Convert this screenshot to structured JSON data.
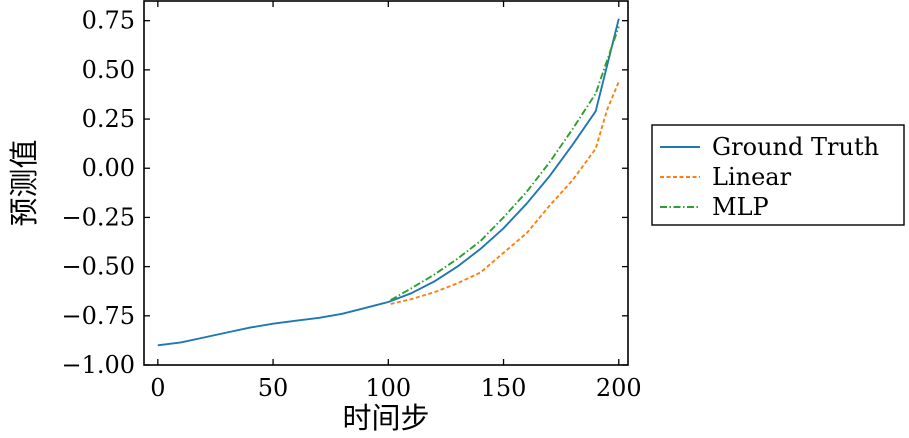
{
  "chart_data": {
    "type": "line",
    "title": "",
    "xlabel": "时间步",
    "ylabel": "预测值",
    "xlim": [
      -6,
      204
    ],
    "ylim": [
      -1.0,
      0.85
    ],
    "xticks": [
      0,
      50,
      100,
      150,
      200
    ],
    "xtick_labels": [
      "0",
      "50",
      "100",
      "150",
      "200"
    ],
    "yticks": [
      -1.0,
      -0.75,
      -0.5,
      -0.25,
      0.0,
      0.25,
      0.5,
      0.75
    ],
    "ytick_labels": [
      "−1.00",
      "−0.75",
      "−0.50",
      "−0.25",
      "0.00",
      "0.25",
      "0.50",
      "0.75"
    ],
    "grid": false,
    "legend_position": "outside-right",
    "series": [
      {
        "name": "Ground Truth",
        "color": "#1f77b4",
        "style": "solid",
        "x": [
          0,
          10,
          20,
          30,
          40,
          50,
          60,
          70,
          80,
          90,
          100,
          110,
          120,
          130,
          140,
          150,
          160,
          170,
          180,
          190,
          200
        ],
        "y": [
          -0.9,
          -0.885,
          -0.86,
          -0.835,
          -0.81,
          -0.79,
          -0.775,
          -0.76,
          -0.74,
          -0.71,
          -0.68,
          -0.635,
          -0.575,
          -0.5,
          -0.41,
          -0.305,
          -0.18,
          -0.04,
          0.12,
          0.29,
          0.76
        ]
      },
      {
        "name": "Linear",
        "color": "#ff7f0e",
        "style": "dashed",
        "x": [
          101,
          110,
          120,
          130,
          140,
          150,
          160,
          170,
          180,
          190,
          195,
          200
        ],
        "y": [
          -0.69,
          -0.665,
          -0.63,
          -0.585,
          -0.53,
          -0.43,
          -0.33,
          -0.19,
          -0.06,
          0.1,
          0.3,
          0.44
        ]
      },
      {
        "name": "MLP",
        "color": "#2ca02c",
        "style": "dashdot",
        "x": [
          101,
          110,
          120,
          130,
          140,
          150,
          160,
          170,
          180,
          190,
          200
        ],
        "y": [
          -0.67,
          -0.61,
          -0.54,
          -0.46,
          -0.37,
          -0.25,
          -0.12,
          0.03,
          0.2,
          0.38,
          0.72
        ]
      }
    ]
  }
}
